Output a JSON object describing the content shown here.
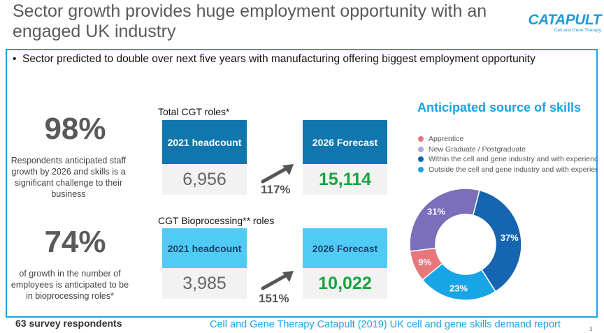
{
  "slide": {
    "title": "Sector growth provides huge employment opportunity with an engaged UK industry",
    "bullet": "Sector predicted to double over next five years with manufacturing offering biggest employment opportunity",
    "footer_respondents": "63 survey respondents",
    "footer_source": "Cell and Gene Therapy Catapult (2019) UK cell and gene skills demand report",
    "page_number": "3"
  },
  "logo": {
    "name": "CATAPULT",
    "subtitle": "Cell and Gene Therapy"
  },
  "stats": [
    {
      "value": "98%",
      "text": "Respondents anticipated staff growth by 2026 and skills is a significant challenge to their business"
    },
    {
      "value": "74%",
      "text": "of growth in the number of employees is anticipated to be in bioprocessing roles*"
    }
  ],
  "total_roles": {
    "label": "Total CGT roles*",
    "current_head": "2021 headcount",
    "current_value": "6,956",
    "forecast_head": "2026 Forecast",
    "forecast_value": "15,114",
    "growth": "117%"
  },
  "bioprocessing_roles": {
    "label": "CGT Bioprocessing** roles",
    "current_head": "2021 headcount",
    "current_value": "3,985",
    "forecast_head": "2026 Forecast",
    "forecast_value": "10,022",
    "growth": "151%"
  },
  "chart_data": {
    "type": "pie",
    "title": "Anticipated source of skills",
    "labels": [
      "Apprentice",
      "New Graduate / Postgraduate",
      "Within the cell and gene industry and with experience",
      "Outside the cell and gene industry and with experience"
    ],
    "values": [
      9,
      31,
      37,
      23
    ],
    "data_labels": [
      "9%",
      "31%",
      "37%",
      "23%"
    ],
    "colors": [
      "#e8777b",
      "#7a6fb8",
      "#1565b0",
      "#17a5e6"
    ],
    "donut": true,
    "legend": "top"
  }
}
